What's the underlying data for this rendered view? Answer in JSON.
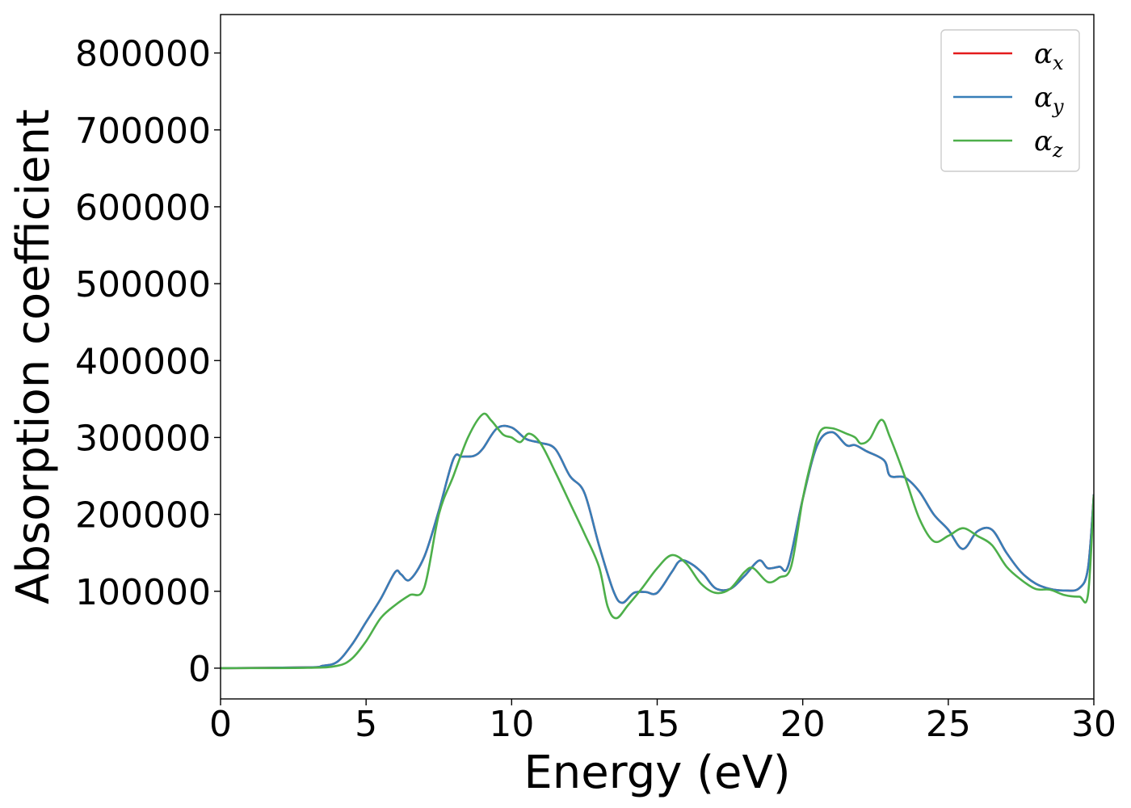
{
  "chart_data": {
    "type": "line",
    "title": "",
    "xlabel": "Energy (eV)",
    "ylabel": "Absorption coefficient",
    "xlim": [
      0,
      30
    ],
    "ylim": [
      -40000,
      850000
    ],
    "xticks": [
      0,
      5,
      10,
      15,
      20,
      25,
      30
    ],
    "xtick_labels": [
      "0",
      "5",
      "10",
      "15",
      "20",
      "25",
      "30"
    ],
    "yticks": [
      0,
      100000,
      200000,
      300000,
      400000,
      500000,
      600000,
      700000,
      800000
    ],
    "ytick_labels": [
      "0",
      "100000",
      "200000",
      "300000",
      "400000",
      "500000",
      "600000",
      "700000",
      "800000"
    ],
    "grid": false,
    "legend_position": "top-right",
    "series": [
      {
        "name": "α",
        "subscript": "x",
        "color": "#e41a1c",
        "x": [
          0,
          3,
          3.5,
          4,
          4.5,
          5,
          5.5,
          6,
          6.2,
          6.5,
          7,
          7.5,
          8,
          8.3,
          8.7,
          9,
          9.5,
          10,
          10.5,
          11,
          11.5,
          12,
          12.5,
          13,
          13.5,
          13.8,
          14.2,
          14.6,
          15,
          15.5,
          15.8,
          16.2,
          16.6,
          17,
          17.5,
          18,
          18.5,
          18.8,
          19.2,
          19.5,
          20,
          20.5,
          21,
          21.5,
          21.8,
          22.2,
          22.8,
          23,
          23.5,
          24,
          24.5,
          25,
          25.5,
          26,
          26.5,
          27,
          27.5,
          28,
          28.5,
          29,
          29.5,
          29.8,
          30
        ],
        "y": [
          0,
          1000,
          3000,
          8000,
          30000,
          60000,
          90000,
          125000,
          122000,
          115000,
          145000,
          205000,
          272000,
          275000,
          276000,
          285000,
          312000,
          313000,
          298000,
          293000,
          285000,
          250000,
          228000,
          160000,
          100000,
          85000,
          98000,
          99000,
          98000,
          125000,
          140000,
          135000,
          122000,
          104000,
          103000,
          120000,
          140000,
          130000,
          132000,
          133000,
          220000,
          290000,
          307000,
          290000,
          290000,
          282000,
          270000,
          250000,
          248000,
          230000,
          200000,
          180000,
          155000,
          178000,
          180000,
          150000,
          125000,
          110000,
          103000,
          101000,
          104000,
          130000,
          226000
        ]
      },
      {
        "name": "α",
        "subscript": "y",
        "color": "#377eb8",
        "x": [
          0,
          3,
          3.5,
          4,
          4.5,
          5,
          5.5,
          6,
          6.2,
          6.5,
          7,
          7.5,
          8,
          8.3,
          8.7,
          9,
          9.5,
          10,
          10.5,
          11,
          11.5,
          12,
          12.5,
          13,
          13.5,
          13.8,
          14.2,
          14.6,
          15,
          15.5,
          15.8,
          16.2,
          16.6,
          17,
          17.5,
          18,
          18.5,
          18.8,
          19.2,
          19.5,
          20,
          20.5,
          21,
          21.5,
          21.8,
          22.2,
          22.8,
          23,
          23.5,
          24,
          24.5,
          25,
          25.5,
          26,
          26.5,
          27,
          27.5,
          28,
          28.5,
          29,
          29.5,
          29.8,
          30
        ],
        "y": [
          0,
          1000,
          3000,
          8000,
          30000,
          60000,
          90000,
          125000,
          122000,
          115000,
          145000,
          205000,
          272000,
          275000,
          276000,
          285000,
          312000,
          313000,
          298000,
          293000,
          285000,
          250000,
          228000,
          160000,
          100000,
          85000,
          98000,
          99000,
          98000,
          125000,
          140000,
          135000,
          122000,
          104000,
          103000,
          120000,
          140000,
          130000,
          132000,
          133000,
          220000,
          290000,
          307000,
          290000,
          290000,
          282000,
          270000,
          250000,
          248000,
          230000,
          200000,
          180000,
          155000,
          178000,
          180000,
          150000,
          125000,
          110000,
          103000,
          101000,
          104000,
          130000,
          226000
        ]
      },
      {
        "name": "α",
        "subscript": "z",
        "color": "#4daf4a",
        "x": [
          0,
          3,
          4,
          4.5,
          5,
          5.5,
          6,
          6.5,
          7,
          7.5,
          8,
          8.5,
          9,
          9.3,
          9.7,
          10,
          10.3,
          10.6,
          11,
          11.5,
          12,
          12.5,
          13,
          13.3,
          13.6,
          14,
          14.5,
          15,
          15.5,
          16,
          16.5,
          17,
          17.5,
          18,
          18.3,
          18.8,
          19.2,
          19.6,
          20,
          20.3,
          20.6,
          21,
          21.5,
          21.8,
          22,
          22.3,
          22.7,
          23,
          23.5,
          24,
          24.5,
          25,
          25.5,
          26,
          26.5,
          27,
          27.5,
          28,
          28.5,
          29,
          29.5,
          29.8,
          30
        ],
        "y": [
          0,
          500,
          3000,
          12000,
          35000,
          65000,
          82000,
          95000,
          105000,
          200000,
          250000,
          300000,
          330000,
          322000,
          304000,
          300000,
          294000,
          305000,
          292000,
          255000,
          215000,
          175000,
          132000,
          80000,
          65000,
          82000,
          105000,
          130000,
          147000,
          136000,
          110000,
          98000,
          103000,
          125000,
          130000,
          112000,
          118000,
          132000,
          220000,
          270000,
          308000,
          312000,
          305000,
          300000,
          292000,
          298000,
          323000,
          300000,
          250000,
          195000,
          165000,
          172000,
          182000,
          172000,
          160000,
          132000,
          115000,
          103000,
          102000,
          95000,
          93000,
          96000,
          225000
        ]
      }
    ]
  }
}
